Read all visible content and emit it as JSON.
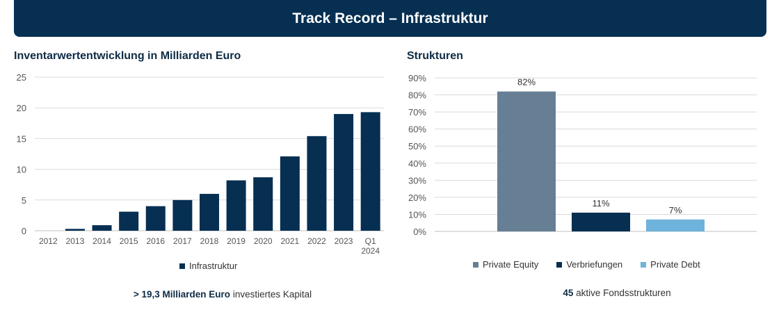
{
  "header": {
    "title": "Track Record – Infrastruktur"
  },
  "left": {
    "title": "Inventarwertentwicklung in Milliarden Euro",
    "caption_bold": "> 19,3 Milliarden Euro",
    "caption_rest": " investiertes Kapital"
  },
  "right": {
    "title": "Strukturen",
    "caption_bold": "45",
    "caption_rest": " aktive Fondsstrukturen"
  },
  "chart_data": [
    {
      "type": "bar",
      "title": "Inventarwertentwicklung in Milliarden Euro",
      "categories": [
        "2012",
        "2013",
        "2014",
        "2015",
        "2016",
        "2017",
        "2018",
        "2019",
        "2020",
        "2021",
        "2022",
        "2023",
        "Q1 2024"
      ],
      "series": [
        {
          "name": "Infrastruktur",
          "color": "#062f52",
          "values": [
            0,
            0.3,
            0.9,
            3.1,
            4.0,
            5.0,
            6.0,
            8.2,
            8.7,
            12.1,
            15.4,
            19.0,
            19.3
          ]
        }
      ],
      "ylim": [
        0,
        25
      ],
      "yticks": [
        0,
        5,
        10,
        15,
        20,
        25
      ],
      "grid": true,
      "legend": "bottom"
    },
    {
      "type": "bar",
      "title": "Strukturen",
      "categories": [
        "Private Equity",
        "Verbriefungen",
        "Private Debt"
      ],
      "values": [
        82,
        11,
        7
      ],
      "data_labels": [
        "82%",
        "11%",
        "7%"
      ],
      "colors": [
        "#677f94",
        "#062f52",
        "#6db3dc"
      ],
      "ylim": [
        0,
        90
      ],
      "yticks": [
        "0%",
        "10%",
        "20%",
        "30%",
        "40%",
        "50%",
        "60%",
        "70%",
        "80%",
        "90%"
      ],
      "grid": true,
      "legend": "bottom"
    }
  ]
}
